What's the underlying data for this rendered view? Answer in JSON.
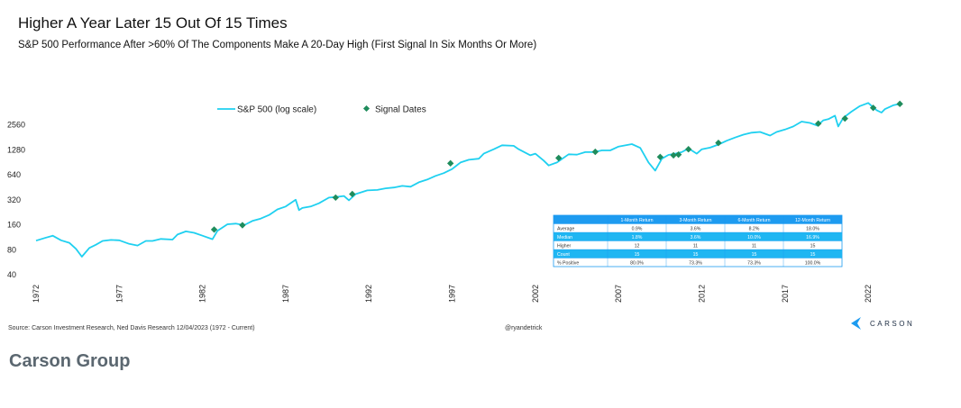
{
  "title": "Higher A Year Later 15 Out Of 15 Times",
  "subtitle": "S&P 500 Performance After >60% Of The Components Make A 20-Day High (First Signal In Six Months Or More)",
  "source": "Source: Carson Investment Research, Ned Davis Research 12/04/2023 (1972 - Current)",
  "handle": "@ryandetrick",
  "logo_text": "CARSON",
  "caption": "Carson Group",
  "colors": {
    "line": "#1fd0f0",
    "marker": "#1f8c5c",
    "table_header": "#1d9bf0",
    "table_highlight": "#1fb6f2"
  },
  "chart_data": {
    "type": "line",
    "y_scale": "log",
    "y_ticks": [
      "40",
      "80",
      "160",
      "320",
      "640",
      "1280",
      "2560"
    ],
    "y_tick_labels": [
      "40",
      "80",
      "160",
      "320",
      "640",
      "1280",
      "2560"
    ],
    "x_ticks": [
      1972,
      1977,
      1982,
      1987,
      1992,
      1997,
      2002,
      2007,
      2012,
      2017,
      2022
    ],
    "x_tick_labels": [
      "1972",
      "1977",
      "1982",
      "1987",
      "1992",
      "1997",
      "2002",
      "2007",
      "2012",
      "2017",
      "2022"
    ],
    "x_range": [
      1972,
      2024
    ],
    "y_range": [
      40,
      5500
    ],
    "legend": [
      "S&P 500 (log scale)",
      "Signal Dates"
    ],
    "legend_position": "top-center",
    "series": [
      {
        "name": "S&P 500 (log scale)",
        "x": [
          1972.0,
          1972.6,
          1973.0,
          1973.5,
          1974.0,
          1974.4,
          1974.75,
          1975.2,
          1975.6,
          1976.0,
          1976.5,
          1977.0,
          1977.6,
          1978.1,
          1978.6,
          1979.0,
          1979.5,
          1980.2,
          1980.5,
          1981.0,
          1981.5,
          1982.0,
          1982.6,
          1982.9,
          1983.5,
          1984.0,
          1984.5,
          1985.0,
          1985.5,
          1986.0,
          1986.5,
          1987.0,
          1987.6,
          1987.8,
          1988.0,
          1988.5,
          1989.0,
          1989.6,
          1990.0,
          1990.5,
          1990.8,
          1991.2,
          1991.9,
          1992.5,
          1993.0,
          1993.5,
          1994.0,
          1994.5,
          1995.0,
          1995.5,
          1996.0,
          1996.5,
          1997.0,
          1997.5,
          1998.0,
          1998.6,
          1998.9,
          1999.5,
          2000.0,
          2000.7,
          2001.0,
          2001.7,
          2002.0,
          2002.5,
          2002.8,
          2003.3,
          2004.0,
          2004.5,
          2005.0,
          2005.5,
          2006.0,
          2006.5,
          2007.0,
          2007.8,
          2008.3,
          2008.8,
          2009.2,
          2009.6,
          2010.0,
          2010.4,
          2010.8,
          2011.2,
          2011.7,
          2012.0,
          2012.5,
          2013.0,
          2013.5,
          2014.0,
          2014.5,
          2015.0,
          2015.5,
          2016.1,
          2016.5,
          2017.0,
          2017.5,
          2018.0,
          2018.5,
          2018.95,
          2019.3,
          2019.6,
          2020.0,
          2020.2,
          2020.5,
          2021.0,
          2021.5,
          2022.0,
          2022.5,
          2022.8,
          2023.0,
          2023.5,
          2023.92
        ],
        "values": [
          103,
          112,
          118,
          104,
          97,
          82,
          66,
          84,
          92,
          102,
          105,
          104,
          94,
          90,
          102,
          102,
          108,
          106,
          122,
          133,
          128,
          118,
          107,
          135,
          162,
          165,
          158,
          178,
          190,
          210,
          245,
          265,
          320,
          240,
          255,
          265,
          290,
          340,
          345,
          355,
          315,
          375,
          415,
          420,
          440,
          450,
          470,
          460,
          520,
          560,
          620,
          670,
          750,
          900,
          970,
          1000,
          1150,
          1300,
          1450,
          1430,
          1300,
          1100,
          1150,
          950,
          830,
          900,
          1130,
          1120,
          1200,
          1200,
          1260,
          1260,
          1400,
          1500,
          1350,
          900,
          720,
          1000,
          1110,
          1150,
          1200,
          1330,
          1150,
          1300,
          1360,
          1480,
          1650,
          1800,
          1950,
          2060,
          2100,
          1900,
          2100,
          2250,
          2450,
          2800,
          2700,
          2500,
          2900,
          3000,
          3300,
          2450,
          3100,
          3700,
          4300,
          4700,
          3850,
          3600,
          3950,
          4400,
          4580
        ]
      }
    ],
    "signals": {
      "x": [
        1982.7,
        1984.4,
        1990.0,
        1991.0,
        1996.9,
        2003.4,
        2005.6,
        2009.5,
        2010.3,
        2010.6,
        2011.2,
        2013.0,
        2019.0,
        2020.6,
        2022.3,
        2023.9
      ],
      "values": [
        140,
        158,
        340,
        375,
        880,
        1020,
        1210,
        1050,
        1100,
        1120,
        1300,
        1550,
        2650,
        3050,
        4100,
        4580
      ]
    },
    "table": {
      "headers": [
        "",
        "1-Month Return",
        "3-Month Return",
        "6-Month Return",
        "12-Month Return"
      ],
      "rows": [
        [
          "Average",
          "0.9%",
          "3.6%",
          "8.2%",
          "18.0%"
        ],
        [
          "Median",
          "1.8%",
          "3.6%",
          "10.0%",
          "16.9%"
        ],
        [
          "Higher",
          "12",
          "11",
          "11",
          "15"
        ],
        [
          "Count",
          "15",
          "15",
          "15",
          "15"
        ],
        [
          "% Positive",
          "80.0%",
          "73.3%",
          "73.3%",
          "100.0%"
        ]
      ],
      "highlight_rows": [
        1,
        3
      ]
    }
  }
}
